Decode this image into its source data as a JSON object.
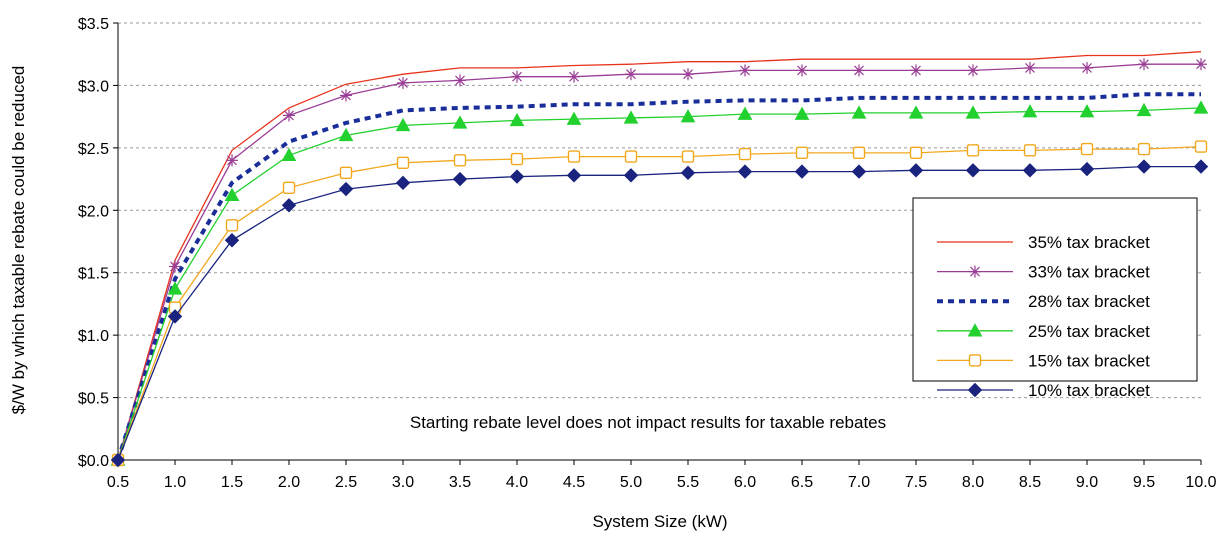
{
  "chart_data": {
    "type": "line",
    "title": "",
    "xlabel": "System Size (kW)",
    "ylabel": "$/W by which taxable rebate could be reduced",
    "annotation": "Starting rebate level does not impact results for taxable rebates",
    "x": [
      0.5,
      1.0,
      1.5,
      2.0,
      2.5,
      3.0,
      3.5,
      4.0,
      4.5,
      5.0,
      5.5,
      6.0,
      6.5,
      7.0,
      7.5,
      8.0,
      8.5,
      9.0,
      9.5,
      10.0
    ],
    "x_tick_labels": [
      "0.5",
      "1.0",
      "1.5",
      "2.0",
      "2.5",
      "3.0",
      "3.5",
      "4.0",
      "4.5",
      "5.0",
      "5.5",
      "6.0",
      "6.5",
      "7.0",
      "7.5",
      "8.0",
      "8.5",
      "9.0",
      "9.5",
      "10.0"
    ],
    "ylim": [
      0,
      3.5
    ],
    "y_ticks": [
      0,
      0.5,
      1.0,
      1.5,
      2.0,
      2.5,
      3.0,
      3.5
    ],
    "y_tick_labels": [
      "$0.0",
      "$0.5",
      "$1.0",
      "$1.5",
      "$2.0",
      "$2.5",
      "$3.0",
      "$3.5"
    ],
    "grid": "horizontal dashed",
    "legend_position": "right",
    "series": [
      {
        "name": "35% tax bracket",
        "color": "#e8331c",
        "marker": "none",
        "dash": "solid",
        "values": [
          0.0,
          1.6,
          2.48,
          2.82,
          3.01,
          3.09,
          3.14,
          3.14,
          3.16,
          3.17,
          3.19,
          3.19,
          3.21,
          3.21,
          3.21,
          3.21,
          3.21,
          3.24,
          3.24,
          3.27
        ]
      },
      {
        "name": "33% tax bracket",
        "color": "#9a3d96",
        "marker": "asterisk",
        "dash": "solid",
        "values": [
          0.0,
          1.55,
          2.4,
          2.76,
          2.92,
          3.02,
          3.04,
          3.07,
          3.07,
          3.09,
          3.09,
          3.12,
          3.12,
          3.12,
          3.12,
          3.12,
          3.14,
          3.14,
          3.17,
          3.17
        ]
      },
      {
        "name": "28% tax bracket",
        "color": "#1a2e9a",
        "marker": "none",
        "dash": "dashed",
        "values": [
          0.0,
          1.45,
          2.22,
          2.55,
          2.7,
          2.8,
          2.82,
          2.83,
          2.85,
          2.85,
          2.87,
          2.88,
          2.88,
          2.9,
          2.9,
          2.9,
          2.9,
          2.9,
          2.93,
          2.93
        ]
      },
      {
        "name": "25% tax bracket",
        "color": "#22d12e",
        "marker": "triangle",
        "dash": "solid",
        "values": [
          0.0,
          1.37,
          2.12,
          2.44,
          2.6,
          2.68,
          2.7,
          2.72,
          2.73,
          2.74,
          2.75,
          2.77,
          2.77,
          2.78,
          2.78,
          2.78,
          2.79,
          2.79,
          2.8,
          2.82
        ]
      },
      {
        "name": "15% tax bracket",
        "color": "#f2a81d",
        "marker": "square-circle",
        "dash": "solid",
        "values": [
          0.0,
          1.22,
          1.88,
          2.18,
          2.3,
          2.38,
          2.4,
          2.41,
          2.43,
          2.43,
          2.43,
          2.45,
          2.46,
          2.46,
          2.46,
          2.48,
          2.48,
          2.49,
          2.49,
          2.51
        ]
      },
      {
        "name": "10% tax bracket",
        "color": "#1a237e",
        "marker": "diamond",
        "dash": "solid",
        "values": [
          0.0,
          1.15,
          1.76,
          2.04,
          2.17,
          2.22,
          2.25,
          2.27,
          2.28,
          2.28,
          2.3,
          2.31,
          2.31,
          2.31,
          2.32,
          2.32,
          2.32,
          2.33,
          2.35,
          2.35
        ]
      }
    ]
  }
}
